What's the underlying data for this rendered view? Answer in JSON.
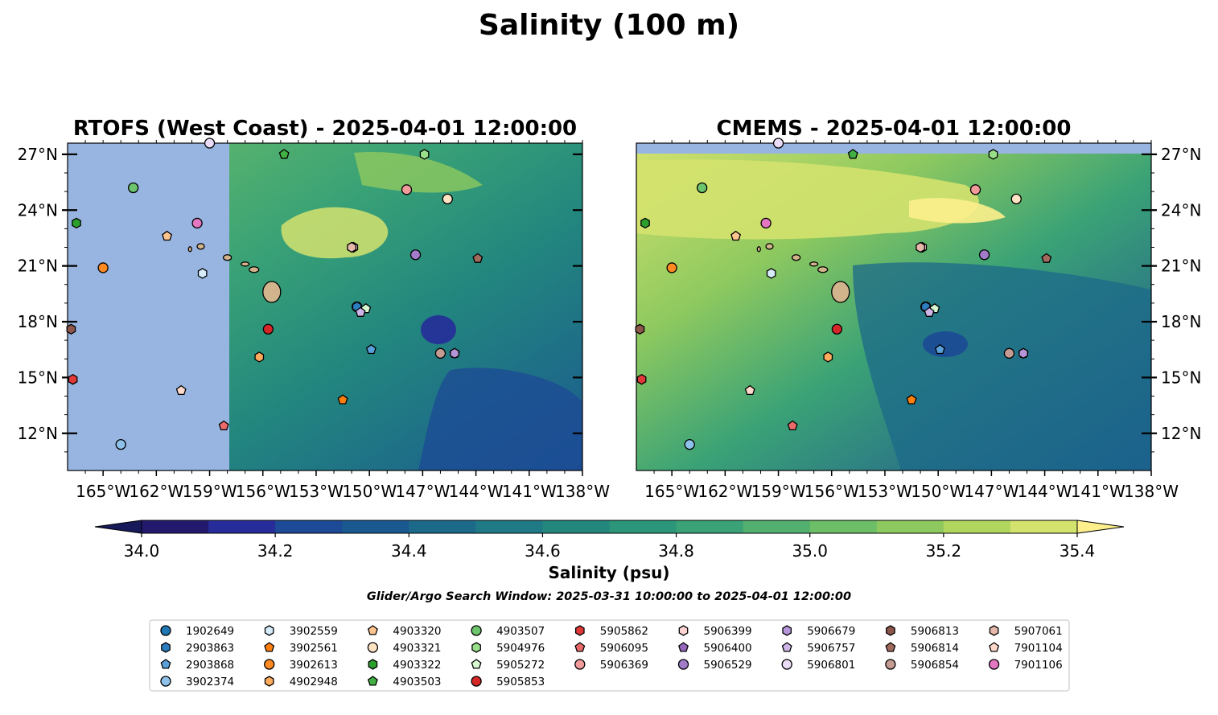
{
  "figure": {
    "title": "Salinity (100 m)",
    "search_window_note": "Glider/Argo Search Window: 2025-03-31 10:00:00 to 2025-04-01 12:00:00"
  },
  "chart_data": [
    {
      "type": "heatmap",
      "panel": "left",
      "title": "RTOFS (West Coast) - 2025-04-01 12:00:00",
      "x_ticks": [
        "165°W",
        "162°W",
        "159°W",
        "156°W",
        "153°W",
        "150°W",
        "147°W",
        "144°W",
        "141°W",
        "138°W"
      ],
      "x_tick_values": [
        -165,
        -162,
        -159,
        -156,
        -153,
        -150,
        -147,
        -144,
        -141,
        -138
      ],
      "y_ticks": [
        "27°N",
        "24°N",
        "21°N",
        "18°N",
        "15°N",
        "12°N"
      ],
      "y_tick_values": [
        27,
        24,
        21,
        18,
        15,
        12
      ],
      "xlim": [
        -167,
        -138
      ],
      "ylim": [
        10,
        27.6
      ],
      "ytick_side": "left",
      "no_data_region": "west of 157.8°W"
    },
    {
      "type": "heatmap",
      "panel": "right",
      "title": "CMEMS - 2025-04-01 12:00:00",
      "x_ticks": [
        "165°W",
        "162°W",
        "159°W",
        "156°W",
        "153°W",
        "150°W",
        "147°W",
        "144°W",
        "141°W",
        "138°W"
      ],
      "x_tick_values": [
        -165,
        -162,
        -159,
        -156,
        -153,
        -150,
        -147,
        -144,
        -141,
        -138
      ],
      "y_ticks": [
        "27°N",
        "24°N",
        "21°N",
        "18°N",
        "15°N",
        "12°N"
      ],
      "y_tick_values": [
        27,
        24,
        21,
        18,
        15,
        12
      ],
      "xlim": [
        -167,
        -138
      ],
      "ylim": [
        10,
        27.6
      ],
      "ytick_side": "right",
      "no_data_region": "north of 27.1°N"
    }
  ],
  "colorbar": {
    "label": "Salinity (psu)",
    "min": 34.0,
    "max": 35.4,
    "step": 0.1,
    "extend": "both",
    "tick_labels": [
      "34.0",
      "34.2",
      "34.4",
      "34.6",
      "34.8",
      "35.0",
      "35.2",
      "35.4"
    ],
    "tick_values": [
      34.0,
      34.2,
      34.4,
      34.6,
      34.8,
      35.0,
      35.2,
      35.4
    ],
    "colors": [
      "#231a6e",
      "#262c99",
      "#1c4a96",
      "#1a5990",
      "#1c6a8a",
      "#1f7a86",
      "#23877e",
      "#2b9679",
      "#3aa276",
      "#52b06f",
      "#6cbe67",
      "#8ec95f",
      "#b1d65e",
      "#d4e26e",
      "#fdf08c",
      "#16195a"
    ]
  },
  "land_color": "#d2b48c",
  "nodata_color": "#97b5e0",
  "legend": {
    "columns": [
      [
        {
          "id": "1902649",
          "marker": "circle",
          "color": "#1f77b4"
        },
        {
          "id": "2903863",
          "marker": "hexagon",
          "color": "#2c7cc0"
        },
        {
          "id": "2903868",
          "marker": "pentagon",
          "color": "#5aa0db"
        },
        {
          "id": "3902374",
          "marker": "circle",
          "color": "#8fc2ea"
        }
      ],
      [
        {
          "id": "3902559",
          "marker": "hexagon",
          "color": "#d6ecfb"
        },
        {
          "id": "3902561",
          "marker": "pentagon",
          "color": "#ff7f0e"
        },
        {
          "id": "3902613",
          "marker": "circle",
          "color": "#ff8a22"
        },
        {
          "id": "4902948",
          "marker": "hexagon",
          "color": "#ffab5e"
        }
      ],
      [
        {
          "id": "4903320",
          "marker": "pentagon",
          "color": "#ffc58f"
        },
        {
          "id": "4903321",
          "marker": "circle",
          "color": "#ffe4c4"
        },
        {
          "id": "4903322",
          "marker": "hexagon",
          "color": "#2ca02c"
        },
        {
          "id": "4903503",
          "marker": "pentagon",
          "color": "#43b043"
        }
      ],
      [
        {
          "id": "4903507",
          "marker": "circle",
          "color": "#6cc46c"
        },
        {
          "id": "5904976",
          "marker": "hexagon",
          "color": "#98df8a"
        },
        {
          "id": "5905272",
          "marker": "pentagon",
          "color": "#d7f8d0"
        },
        {
          "id": "5905853",
          "marker": "circle",
          "color": "#d62728"
        }
      ],
      [
        {
          "id": "5905862",
          "marker": "hexagon",
          "color": "#e0393a"
        },
        {
          "id": "5906095",
          "marker": "pentagon",
          "color": "#ea6a6a"
        },
        {
          "id": "5906369",
          "marker": "circle",
          "color": "#f29b9b"
        },
        {
          "id": "",
          "marker": "none",
          "color": ""
        }
      ],
      [
        {
          "id": "5906399",
          "marker": "hexagon",
          "color": "#ffd3d3"
        },
        {
          "id": "5906400",
          "marker": "pentagon",
          "color": "#9467bd"
        },
        {
          "id": "5906529",
          "marker": "circle",
          "color": "#a27cc9"
        },
        {
          "id": "",
          "marker": "none",
          "color": ""
        }
      ],
      [
        {
          "id": "5906679",
          "marker": "hexagon",
          "color": "#b596d9"
        },
        {
          "id": "5906757",
          "marker": "pentagon",
          "color": "#cdb5e8"
        },
        {
          "id": "5906801",
          "marker": "circle",
          "color": "#eadcf7"
        },
        {
          "id": "",
          "marker": "none",
          "color": ""
        }
      ],
      [
        {
          "id": "5906813",
          "marker": "hexagon",
          "color": "#8c564b"
        },
        {
          "id": "5906814",
          "marker": "pentagon",
          "color": "#a06a5c"
        },
        {
          "id": "5906854",
          "marker": "circle",
          "color": "#c49c94"
        },
        {
          "id": "",
          "marker": "none",
          "color": ""
        }
      ],
      [
        {
          "id": "5907061",
          "marker": "hexagon",
          "color": "#e6b8aa"
        },
        {
          "id": "7901104",
          "marker": "pentagon",
          "color": "#ffd9cc"
        },
        {
          "id": "7901106",
          "marker": "circle",
          "color": "#e377c2"
        },
        {
          "id": "",
          "marker": "none",
          "color": ""
        }
      ]
    ]
  },
  "floats": [
    {
      "id": "1902649",
      "lon": -150.7,
      "lat": 18.8,
      "marker": "circle",
      "color": "#1f77b4"
    },
    {
      "id": "2903863",
      "lon": -150.7,
      "lat": 18.8,
      "marker": "hexagon",
      "color": "#2c7cc0"
    },
    {
      "id": "2903868",
      "lon": -149.9,
      "lat": 16.5,
      "marker": "pentagon",
      "color": "#5aa0db"
    },
    {
      "id": "3902374",
      "lon": -164.0,
      "lat": 11.4,
      "marker": "circle",
      "color": "#8fc2ea"
    },
    {
      "id": "3902559",
      "lon": -159.4,
      "lat": 20.6,
      "marker": "hexagon",
      "color": "#d6ecfb"
    },
    {
      "id": "3902561",
      "lon": -151.5,
      "lat": 13.8,
      "marker": "pentagon",
      "color": "#ff7f0e"
    },
    {
      "id": "3902613",
      "lon": -165.0,
      "lat": 20.9,
      "marker": "circle",
      "color": "#ff8a22"
    },
    {
      "id": "4902948",
      "lon": -156.2,
      "lat": 16.1,
      "marker": "hexagon",
      "color": "#ffab5e"
    },
    {
      "id": "4903320",
      "lon": -161.4,
      "lat": 22.6,
      "marker": "pentagon",
      "color": "#ffc58f"
    },
    {
      "id": "4903321",
      "lon": -145.6,
      "lat": 24.6,
      "marker": "circle",
      "color": "#ffe4c4"
    },
    {
      "id": "4903322",
      "lon": -166.5,
      "lat": 23.3,
      "marker": "hexagon",
      "color": "#2ca02c"
    },
    {
      "id": "4903503",
      "lon": -154.8,
      "lat": 27.0,
      "marker": "pentagon",
      "color": "#43b043"
    },
    {
      "id": "4903507",
      "lon": -163.3,
      "lat": 25.2,
      "marker": "circle",
      "color": "#6cc46c"
    },
    {
      "id": "5904976",
      "lon": -146.9,
      "lat": 27.0,
      "marker": "hexagon",
      "color": "#98df8a"
    },
    {
      "id": "5905272",
      "lon": -150.2,
      "lat": 18.7,
      "marker": "pentagon",
      "color": "#d7f8d0"
    },
    {
      "id": "5905853",
      "lon": -155.7,
      "lat": 17.6,
      "marker": "circle",
      "color": "#d62728"
    },
    {
      "id": "5905862",
      "lon": -166.7,
      "lat": 14.9,
      "marker": "hexagon",
      "color": "#e0393a"
    },
    {
      "id": "5906095",
      "lon": -158.2,
      "lat": 12.4,
      "marker": "pentagon",
      "color": "#ea6a6a"
    },
    {
      "id": "5906369",
      "lon": -147.9,
      "lat": 25.1,
      "marker": "circle",
      "color": "#f29b9b"
    },
    {
      "id": "5906399",
      "lon": -150.9,
      "lat": 22.0,
      "marker": "hexagon",
      "color": "#ffd3d3"
    },
    {
      "id": "5906400",
      "lon": -145.2,
      "lat": 16.3,
      "marker": "pentagon",
      "color": "#9467bd"
    },
    {
      "id": "5906529",
      "lon": -147.4,
      "lat": 21.6,
      "marker": "circle",
      "color": "#a27cc9"
    },
    {
      "id": "5906679",
      "lon": -145.2,
      "lat": 16.3,
      "marker": "hexagon",
      "color": "#b596d9"
    },
    {
      "id": "5906757",
      "lon": -150.5,
      "lat": 18.5,
      "marker": "pentagon",
      "color": "#cdb5e8"
    },
    {
      "id": "5906801",
      "lon": -159.0,
      "lat": 27.6,
      "marker": "circle",
      "color": "#eadcf7"
    },
    {
      "id": "5906813",
      "lon": -166.8,
      "lat": 17.6,
      "marker": "hexagon",
      "color": "#8c564b"
    },
    {
      "id": "5906814",
      "lon": -143.9,
      "lat": 21.4,
      "marker": "pentagon",
      "color": "#a06a5c"
    },
    {
      "id": "5906854",
      "lon": -146.0,
      "lat": 16.3,
      "marker": "circle",
      "color": "#c49c94"
    },
    {
      "id": "5907061",
      "lon": -151.0,
      "lat": 22.0,
      "marker": "hexagon",
      "color": "#e6b8aa"
    },
    {
      "id": "7901104",
      "lon": -160.6,
      "lat": 14.3,
      "marker": "pentagon",
      "color": "#ffd9cc"
    },
    {
      "id": "7901106",
      "lon": -159.7,
      "lat": 23.3,
      "marker": "circle",
      "color": "#e377c2"
    }
  ]
}
